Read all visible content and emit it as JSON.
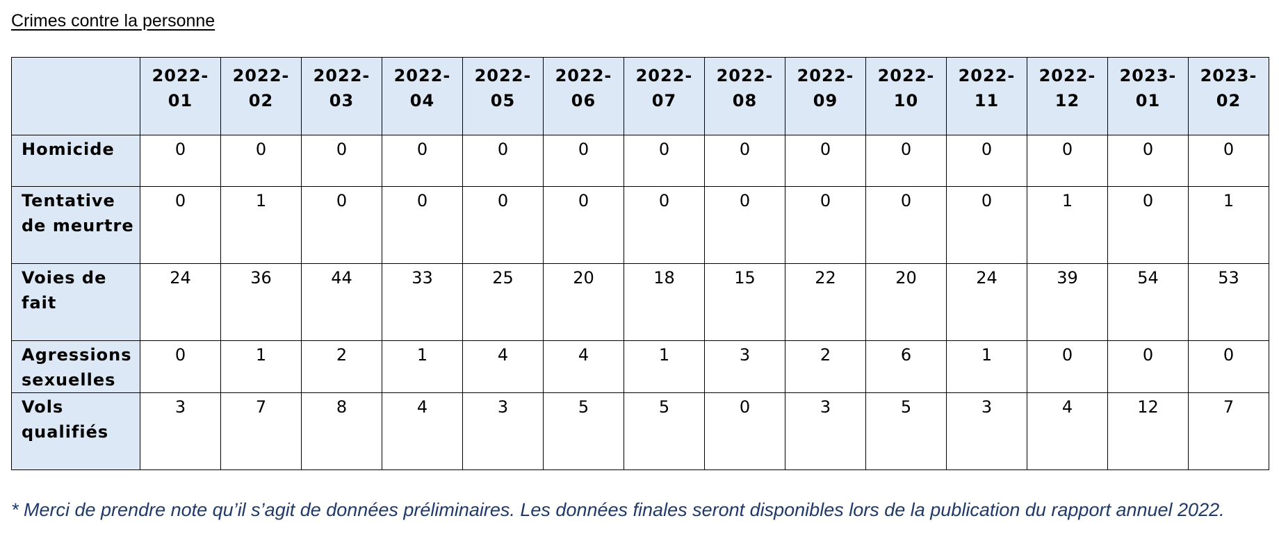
{
  "title": "Crimes contre la personne",
  "columns": [
    "2022-01",
    "2022-02",
    "2022-03",
    "2022-04",
    "2022-05",
    "2022-06",
    "2022-07",
    "2022-08",
    "2022-09",
    "2022-10",
    "2022-11",
    "2022-12",
    "2023-01",
    "2023-02"
  ],
  "rows": [
    {
      "label": "Homicide",
      "values": [
        "0",
        "0",
        "0",
        "0",
        "0",
        "0",
        "0",
        "0",
        "0",
        "0",
        "0",
        "0",
        "0",
        "0"
      ]
    },
    {
      "label": "Tentative de meurtre",
      "values": [
        "0",
        "1",
        "0",
        "0",
        "0",
        "0",
        "0",
        "0",
        "0",
        "0",
        "0",
        "1",
        "0",
        "1"
      ]
    },
    {
      "label": "Voies de fait",
      "values": [
        "24",
        "36",
        "44",
        "33",
        "25",
        "20",
        "18",
        "15",
        "22",
        "20",
        "24",
        "39",
        "54",
        "53"
      ]
    },
    {
      "label": "Agressions sexuelles",
      "values": [
        "0",
        "1",
        "2",
        "1",
        "4",
        "4",
        "1",
        "3",
        "2",
        "6",
        "1",
        "0",
        "0",
        "0"
      ]
    },
    {
      "label": "Vols qualifiés",
      "values": [
        "3",
        "7",
        "8",
        "4",
        "3",
        "5",
        "5",
        "0",
        "3",
        "5",
        "3",
        "4",
        "12",
        "7"
      ]
    }
  ],
  "footnote": "* Merci de prendre note qu’il s’agit de données préliminaires. Les données finales seront disponibles lors de la publication du rapport annuel 2022.",
  "colors": {
    "header_bg": "#dce8f5",
    "footnote_text": "#1f3a68",
    "border": "#000000"
  }
}
